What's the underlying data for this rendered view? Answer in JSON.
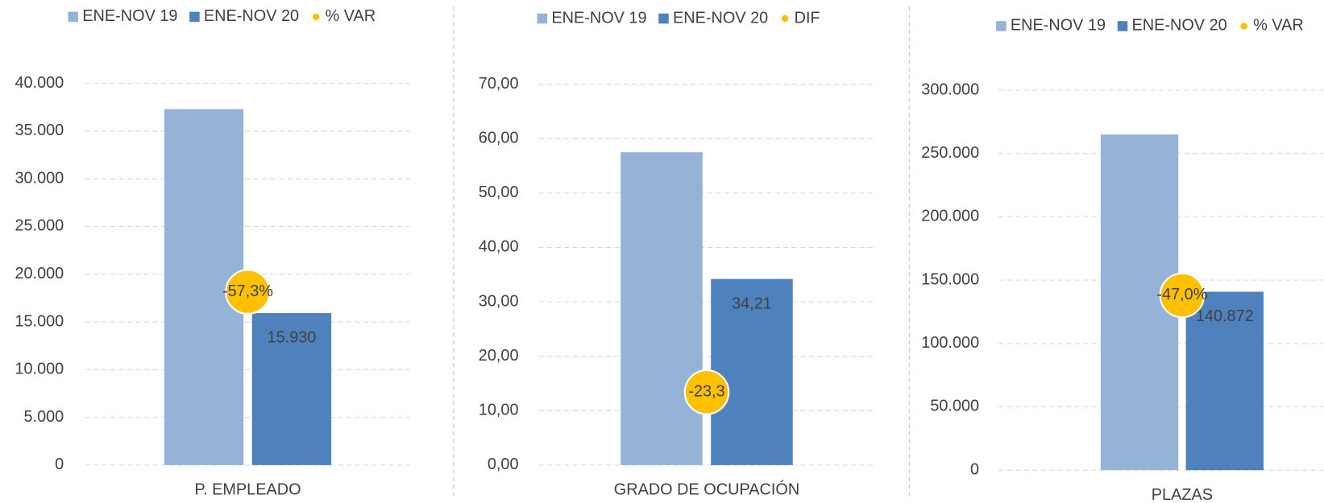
{
  "chart_data": [
    {
      "type": "bar",
      "categories": [
        "P. EMPLEADO"
      ],
      "series": [
        {
          "name": "ENE-NOV 19",
          "color": "#95b3d7",
          "values": [
            37300
          ]
        },
        {
          "name": "ENE-NOV 20",
          "color": "#4f81bd",
          "values": [
            15930
          ],
          "value_labels": [
            "15.930"
          ]
        },
        {
          "name": "% VAR",
          "color": "#ffc000",
          "axis": "y2",
          "values": [
            -57.3
          ],
          "value_labels": [
            "-57,3%"
          ]
        }
      ],
      "ylim": [
        0,
        40000
      ],
      "yticks": [
        0,
        {
          "value": 5000,
          "label": "5.000"
        },
        {
          "value": 10000,
          "label": "10.000"
        },
        {
          "value": 15000,
          "label": "15.000"
        },
        {
          "value": 20000,
          "label": "20.000"
        },
        {
          "value": 25000,
          "label": "25.000"
        },
        {
          "value": 30000,
          "label": "30.000"
        },
        {
          "value": 35000,
          "label": "35.000"
        },
        {
          "value": 40000,
          "label": "40.000"
        }
      ],
      "y2lim": [
        -80,
        -30
      ],
      "grid": true,
      "legend": "top"
    },
    {
      "type": "bar",
      "categories": [
        "GRADO DE OCUPACIÓN"
      ],
      "series": [
        {
          "name": "ENE-NOV 19",
          "color": "#95b3d7",
          "values": [
            57.5
          ]
        },
        {
          "name": "ENE-NOV 20",
          "color": "#4f81bd",
          "values": [
            34.21
          ],
          "value_labels": [
            "34,21"
          ]
        },
        {
          "name": "DIF",
          "color": "#ffc000",
          "axis": "y2",
          "values": [
            -23.3
          ],
          "value_labels": [
            "-23,3"
          ]
        }
      ],
      "ylim": [
        0,
        70
      ],
      "yticks": [
        {
          "value": 0,
          "label": "0,00"
        },
        {
          "value": 10,
          "label": "10,00"
        },
        {
          "value": 20,
          "label": "20,00"
        },
        {
          "value": 30,
          "label": "30,00"
        },
        {
          "value": 40,
          "label": "40,00"
        },
        {
          "value": 50,
          "label": "50,00"
        },
        {
          "value": 60,
          "label": "60,00"
        },
        {
          "value": 70,
          "label": "70,00"
        }
      ],
      "y2lim": [
        -30,
        5
      ],
      "grid": true,
      "legend": "top"
    },
    {
      "type": "bar",
      "categories": [
        "PLAZAS"
      ],
      "series": [
        {
          "name": "ENE-NOV 19",
          "color": "#95b3d7",
          "values": [
            265000
          ]
        },
        {
          "name": "ENE-NOV 20",
          "color": "#4f81bd",
          "values": [
            140872
          ],
          "value_labels": [
            "140.872"
          ]
        },
        {
          "name": "% VAR",
          "color": "#ffc000",
          "axis": "y2",
          "values": [
            -47.0
          ],
          "value_labels": [
            "-47,0%"
          ]
        }
      ],
      "ylim": [
        0,
        300000
      ],
      "yticks": [
        0,
        {
          "value": 50000,
          "label": "50.000"
        },
        {
          "value": 100000,
          "label": "100.000"
        },
        {
          "value": 150000,
          "label": "150.000"
        },
        {
          "value": 200000,
          "label": "200.000"
        },
        {
          "value": 250000,
          "label": "250.000"
        },
        {
          "value": 300000,
          "label": "300.000"
        }
      ],
      "y2lim": [
        -70,
        -20
      ],
      "grid": true,
      "legend": "top"
    }
  ]
}
